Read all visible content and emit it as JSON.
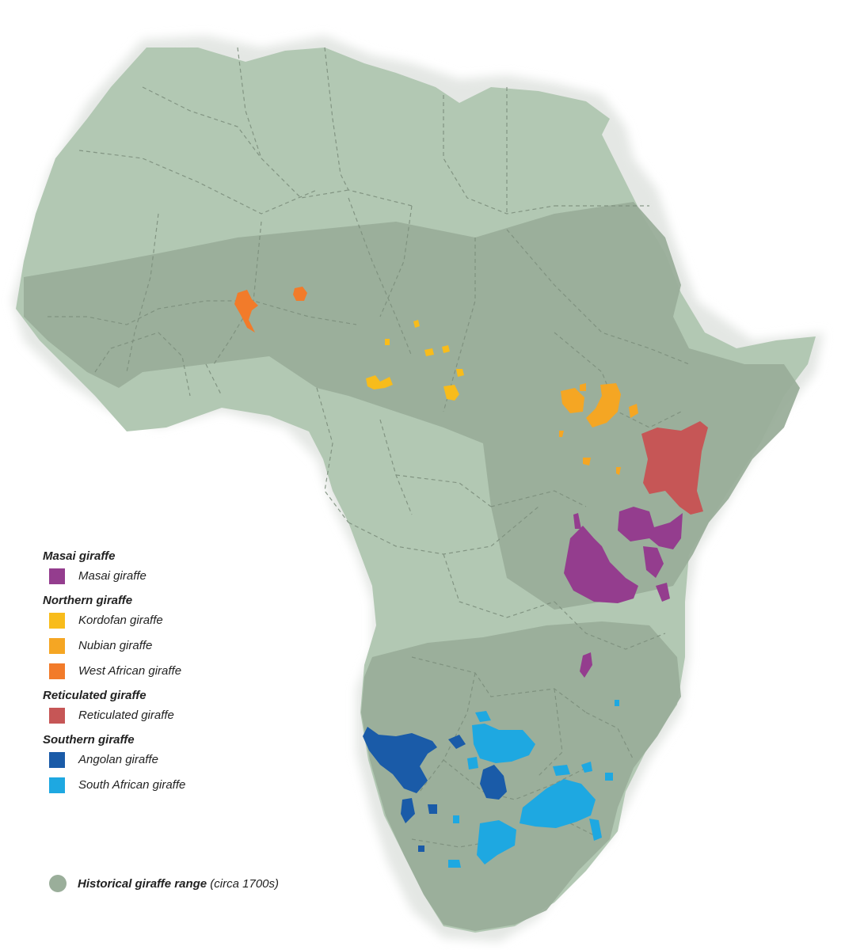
{
  "colors": {
    "africa": "#b2c8b3",
    "historical_range": "#9aae9a",
    "border": "#7d8f7d",
    "masai": "#943d8e",
    "kordofan": "#f8bc1b",
    "nubian": "#f5a623",
    "west_african": "#f27b2a",
    "reticulated": "#c65656",
    "angolan": "#1a5ba8",
    "south_african": "#1ea8e1"
  },
  "legend": {
    "groups": [
      {
        "heading": "Masai giraffe",
        "items": [
          {
            "label": "Masai giraffe",
            "color": "#943d8e"
          }
        ]
      },
      {
        "heading": "Northern giraffe",
        "items": [
          {
            "label": "Kordofan giraffe",
            "color": "#f8bc1b"
          },
          {
            "label": "Nubian giraffe",
            "color": "#f5a623"
          },
          {
            "label": "West African giraffe",
            "color": "#f27b2a"
          }
        ]
      },
      {
        "heading": "Reticulated giraffe",
        "items": [
          {
            "label": "Reticulated giraffe",
            "color": "#c65656"
          }
        ]
      },
      {
        "heading": "Southern giraffe",
        "items": [
          {
            "label": "Angolan giraffe",
            "color": "#1a5ba8"
          },
          {
            "label": "South African giraffe",
            "color": "#1ea8e1"
          }
        ]
      }
    ]
  },
  "historical": {
    "title": "Historical giraffe range",
    "note": "(circa 1700s)",
    "color": "#9aae9a"
  }
}
